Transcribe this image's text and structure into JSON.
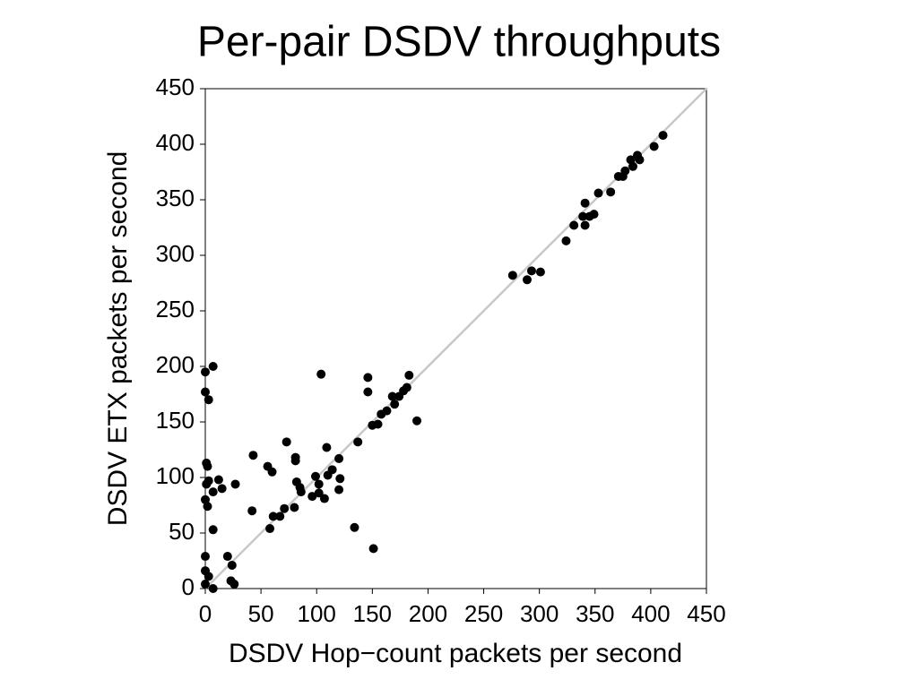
{
  "chart_data": {
    "type": "scatter",
    "title": "Per-pair DSDV throughputs",
    "x_label": "DSDV Hop−count packets per second",
    "y_label": "DSDV ETX packets per second",
    "xlim": [
      0,
      450
    ],
    "ylim": [
      0,
      450
    ],
    "xticks": [
      0,
      50,
      100,
      150,
      200,
      250,
      300,
      350,
      400,
      450
    ],
    "yticks": [
      0,
      50,
      100,
      150,
      200,
      250,
      300,
      350,
      400,
      450
    ],
    "color": "#000000",
    "reference_line_color": "#c8c8c8",
    "x": [
      0,
      7,
      0,
      3,
      1,
      2,
      1,
      3,
      0,
      2,
      12,
      7,
      15,
      27,
      7,
      0,
      0,
      3,
      0,
      7,
      20,
      24,
      23,
      26,
      43,
      42,
      56,
      60,
      58,
      61,
      67,
      71,
      73,
      80,
      81,
      81,
      82,
      85,
      86,
      96,
      99,
      102,
      102,
      107,
      104,
      109,
      110,
      114,
      120,
      121,
      120,
      134,
      137,
      146,
      146,
      151,
      150,
      155,
      158,
      163,
      168,
      170,
      174,
      178,
      181,
      183,
      190,
      276,
      289,
      293,
      301,
      324,
      331,
      339,
      341,
      341,
      345,
      349,
      353,
      364,
      371,
      375,
      377,
      382,
      384,
      388,
      390,
      403,
      411
    ],
    "y": [
      195,
      200,
      177,
      170,
      113,
      110,
      94,
      97,
      80,
      74,
      98,
      87,
      90,
      94,
      53,
      29,
      16,
      11,
      4,
      0,
      29,
      21,
      7,
      4,
      120,
      70,
      110,
      105,
      54,
      65,
      65,
      72,
      132,
      73,
      118,
      115,
      96,
      91,
      87,
      83,
      101,
      94,
      86,
      81,
      193,
      127,
      102,
      107,
      117,
      99,
      89,
      55,
      132,
      190,
      177,
      36,
      147,
      148,
      157,
      160,
      173,
      166,
      173,
      178,
      181,
      192,
      151,
      282,
      278,
      286,
      285,
      313,
      327,
      335,
      347,
      327,
      335,
      337,
      356,
      357,
      371,
      371,
      376,
      386,
      380,
      390,
      386,
      398,
      408
    ]
  }
}
